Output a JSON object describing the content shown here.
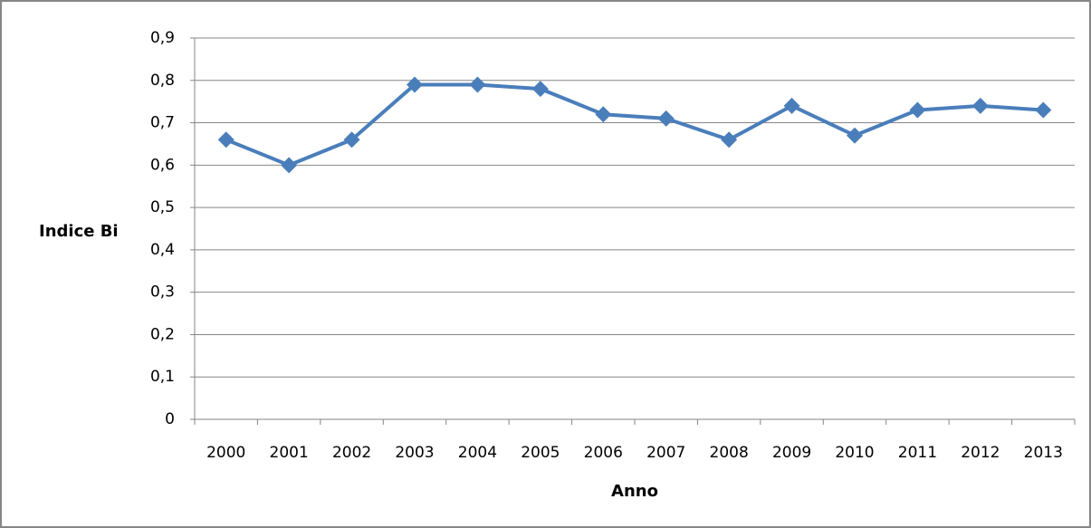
{
  "chart_data": {
    "type": "line",
    "x_label": "Anno",
    "y_label": "Indice Bi",
    "categories": [
      "2000",
      "2001",
      "2002",
      "2003",
      "2004",
      "2005",
      "2006",
      "2007",
      "2008",
      "2009",
      "2010",
      "2011",
      "2012",
      "2013"
    ],
    "series": [
      {
        "color": "#4a7ebb",
        "values": [
          0.66,
          0.6,
          0.66,
          0.79,
          0.79,
          0.78,
          0.72,
          0.71,
          0.66,
          0.74,
          0.67,
          0.73,
          0.74,
          0.73
        ]
      }
    ],
    "ylim": [
      0,
      0.9
    ],
    "yticks": [
      0,
      {
        "value": 0.1,
        "label": "0,1"
      },
      {
        "value": 0.2,
        "label": "0,2"
      },
      {
        "value": 0.3,
        "label": "0,3"
      },
      {
        "value": 0.4,
        "label": "0,4"
      },
      {
        "value": 0.5,
        "label": "0,5"
      },
      {
        "value": 0.6,
        "label": "0,6"
      },
      {
        "value": 0.7,
        "label": "0,7"
      },
      {
        "value": 0.8,
        "label": "0,8"
      },
      {
        "value": 0.9,
        "label": "0,9"
      }
    ],
    "grid": true
  }
}
